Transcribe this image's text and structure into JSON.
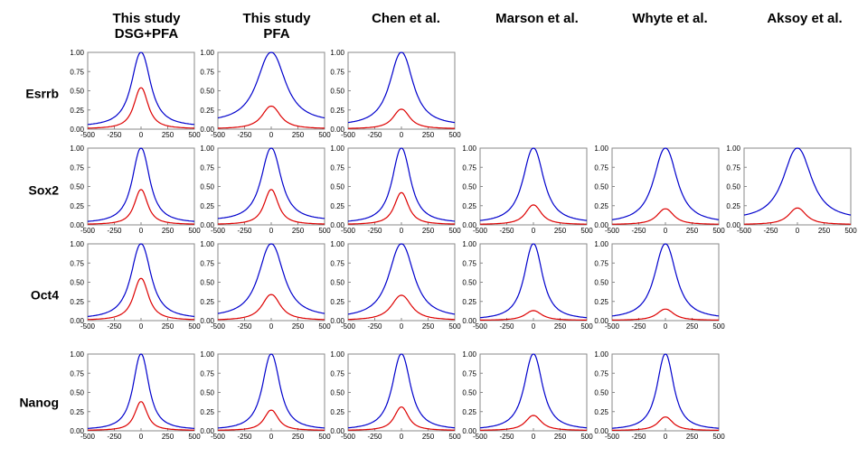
{
  "columns": [
    {
      "title_lines": [
        "This study",
        "DSG+PFA"
      ]
    },
    {
      "title_lines": [
        "This study",
        "PFA"
      ]
    },
    {
      "title_lines": [
        "Chen et al."
      ]
    },
    {
      "title_lines": [
        "Marson et al."
      ]
    },
    {
      "title_lines": [
        "Whyte et al."
      ]
    },
    {
      "title_lines": [
        "Aksoy et al."
      ]
    }
  ],
  "rows": [
    "Esrrb",
    "Sox2",
    "Oct4",
    "Nanog"
  ],
  "colors": {
    "blue": "#0000cc",
    "red": "#dd0000",
    "frame": "#888888"
  },
  "chart_data": {
    "type": "line",
    "layout": "small-multiples grid (4 rows x 6 columns)",
    "x_ticks": [
      -500,
      -250,
      0,
      250,
      500
    ],
    "y_ticks": [
      0.0,
      0.25,
      0.5,
      0.75,
      1.0
    ],
    "xlim": [
      -500,
      500
    ],
    "ylim": [
      0,
      1.0
    ],
    "grid": false,
    "series_style": [
      {
        "color": "#0000cc",
        "peak_at": 0
      },
      {
        "color": "#dd0000",
        "peak_at": 0
      }
    ],
    "panels": [
      {
        "row": "Esrrb",
        "column": "This study DSG+PFA",
        "blue_peak": 1.0,
        "red_peak": 0.54,
        "blue_width": 115,
        "red_width": 85,
        "blue_tail": 0.03
      },
      {
        "row": "Esrrb",
        "column": "This study PFA",
        "blue_peak": 1.0,
        "red_peak": 0.3,
        "blue_width": 170,
        "red_width": 110,
        "blue_tail": 0.08
      },
      {
        "row": "Esrrb",
        "column": "Chen et al.",
        "blue_peak": 1.0,
        "red_peak": 0.26,
        "blue_width": 140,
        "red_width": 100,
        "blue_tail": 0.04
      },
      {
        "row": "Sox2",
        "column": "This study DSG+PFA",
        "blue_peak": 1.0,
        "red_peak": 0.46,
        "blue_width": 105,
        "red_width": 80,
        "blue_tail": 0.02
      },
      {
        "row": "Sox2",
        "column": "This study PFA",
        "blue_peak": 1.0,
        "red_peak": 0.46,
        "blue_width": 120,
        "red_width": 85,
        "blue_tail": 0.05
      },
      {
        "row": "Sox2",
        "column": "Chen et al.",
        "blue_peak": 1.0,
        "red_peak": 0.42,
        "blue_width": 110,
        "red_width": 85,
        "blue_tail": 0.02
      },
      {
        "row": "Sox2",
        "column": "Marson et al.",
        "blue_peak": 1.0,
        "red_peak": 0.26,
        "blue_width": 125,
        "red_width": 95,
        "blue_tail": 0.02
      },
      {
        "row": "Sox2",
        "column": "Whyte et al.",
        "blue_peak": 1.0,
        "red_peak": 0.21,
        "blue_width": 140,
        "red_width": 100,
        "blue_tail": 0.02
      },
      {
        "row": "Sox2",
        "column": "Aksoy et al.",
        "blue_peak": 1.0,
        "red_peak": 0.22,
        "blue_width": 170,
        "red_width": 105,
        "blue_tail": 0.06
      },
      {
        "row": "Oct4",
        "column": "This study DSG+PFA",
        "blue_peak": 1.0,
        "red_peak": 0.55,
        "blue_width": 120,
        "red_width": 90,
        "blue_tail": 0.02
      },
      {
        "row": "Oct4",
        "column": "This study PFA",
        "blue_peak": 1.0,
        "red_peak": 0.34,
        "blue_width": 150,
        "red_width": 110,
        "blue_tail": 0.04
      },
      {
        "row": "Oct4",
        "column": "Chen et al.",
        "blue_peak": 1.0,
        "red_peak": 0.33,
        "blue_width": 150,
        "red_width": 120,
        "blue_tail": 0.03
      },
      {
        "row": "Oct4",
        "column": "Marson et al.",
        "blue_peak": 1.0,
        "red_peak": 0.13,
        "blue_width": 110,
        "red_width": 100,
        "blue_tail": 0.01
      },
      {
        "row": "Oct4",
        "column": "Whyte et al.",
        "blue_peak": 1.0,
        "red_peak": 0.15,
        "blue_width": 130,
        "red_width": 100,
        "blue_tail": 0.02
      },
      {
        "row": "Nanog",
        "column": "This study DSG+PFA",
        "blue_peak": 1.0,
        "red_peak": 0.38,
        "blue_width": 95,
        "red_width": 75,
        "blue_tail": 0.01
      },
      {
        "row": "Nanog",
        "column": "This study PFA",
        "blue_peak": 1.0,
        "red_peak": 0.27,
        "blue_width": 105,
        "red_width": 85,
        "blue_tail": 0.01
      },
      {
        "row": "Nanog",
        "column": "Chen et al.",
        "blue_peak": 1.0,
        "red_peak": 0.31,
        "blue_width": 110,
        "red_width": 85,
        "blue_tail": 0.01
      },
      {
        "row": "Nanog",
        "column": "Marson et al.",
        "blue_peak": 1.0,
        "red_peak": 0.2,
        "blue_width": 110,
        "red_width": 95,
        "blue_tail": 0.01
      },
      {
        "row": "Nanog",
        "column": "Whyte et al.",
        "blue_peak": 1.0,
        "red_peak": 0.18,
        "blue_width": 100,
        "red_width": 90,
        "blue_tail": 0.01
      }
    ]
  }
}
